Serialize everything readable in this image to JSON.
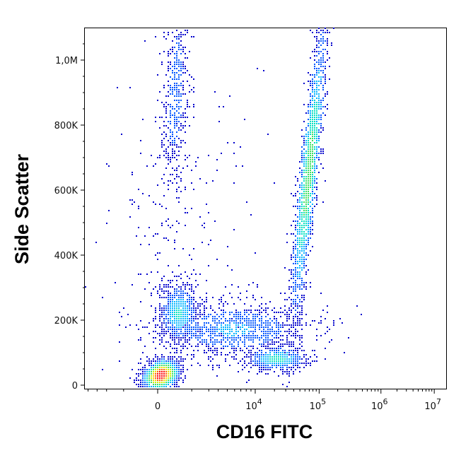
{
  "chart_data": {
    "type": "scatter",
    "style": "density-colored flow cytometry dot plot",
    "title": "",
    "xlabel": "CD16 FITC",
    "ylabel": "Side Scatter",
    "x_scale": "biexponential (linear near 0, logarithmic above ~10^3.5)",
    "x_ticks": [
      {
        "value": 0,
        "label": "0"
      },
      {
        "value": 10000,
        "label": "10",
        "exp": "4"
      },
      {
        "value": 100000,
        "label": "10",
        "exp": "5"
      },
      {
        "value": 1000000,
        "label": "10",
        "exp": "6"
      },
      {
        "value": 10000000,
        "label": "10",
        "exp": "7"
      }
    ],
    "y_scale": "linear",
    "ylim": [
      -5000,
      1100000
    ],
    "y_ticks": [
      {
        "value": 0,
        "label": "0"
      },
      {
        "value": 200000,
        "label": "200K"
      },
      {
        "value": 400000,
        "label": "400K"
      },
      {
        "value": 600000,
        "label": "600K"
      },
      {
        "value": 800000,
        "label": "800K"
      },
      {
        "value": 1000000,
        "label": "1,0M"
      }
    ],
    "color_scale": [
      "#0000cc",
      "#0055ff",
      "#00b4ff",
      "#00e0c0",
      "#40e060",
      "#c8f000",
      "#ffd000",
      "#ff6000",
      "#ff0000"
    ],
    "populations": [
      {
        "name": "CD16-negative low SSC",
        "x_center": 0,
        "y_center": 30000,
        "density": "very high"
      },
      {
        "name": "CD16-negative mid SSC",
        "x_center": 2000,
        "y_center": 220000,
        "density": "medium"
      },
      {
        "name": "CD16-dim band",
        "x_center": 10000,
        "y_center": 170000,
        "density": "low-medium"
      },
      {
        "name": "CD16-positive low SSC",
        "x_center": 25000,
        "y_center": 80000,
        "density": "medium"
      },
      {
        "name": "CD16-bright high SSC",
        "x_center": 90000,
        "y_center": 650000,
        "density": "high"
      },
      {
        "name": "CD16-negative very high SSC",
        "x_center": 4000,
        "y_center": 900000,
        "density": "low"
      }
    ],
    "grid": false,
    "legend": "none"
  }
}
